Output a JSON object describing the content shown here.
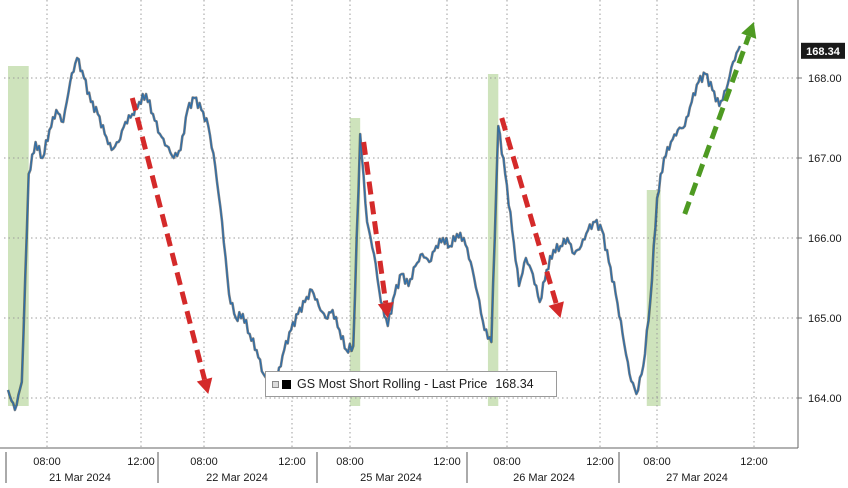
{
  "chart_data": {
    "type": "line",
    "title": "",
    "xlabel": "",
    "ylabel": "",
    "ylim": [
      163.3,
      168.9
    ],
    "y_ticks": [
      164.0,
      165.0,
      166.0,
      167.0,
      168.0
    ],
    "y_tick_labels": [
      "164.00",
      "165.00",
      "166.00",
      "167.00",
      "168.00"
    ],
    "grid": true,
    "legend": "bottom-center",
    "x_tick_labels": [
      "08:00",
      "12:00",
      "08:00",
      "12:00",
      "08:00",
      "12:00",
      "08:00",
      "12:00",
      "08:00",
      "12:00"
    ],
    "date_labels": [
      "21 Mar 2024",
      "22 Mar 2024",
      "25 Mar 2024",
      "26 Mar 2024",
      "27 Mar 2024"
    ],
    "series": [
      {
        "name": "GS Most Short Rolling",
        "color": "#2f6ea8",
        "legend_text": "GS Most Short Rolling - Last Price",
        "last_price": 168.34,
        "last_price_label": "168.34",
        "values": [
          164.1,
          163.85,
          164.2,
          166.8,
          167.2,
          167.0,
          167.35,
          167.6,
          167.45,
          167.95,
          168.25,
          168.0,
          167.7,
          167.55,
          167.3,
          167.1,
          167.2,
          167.45,
          167.55,
          167.7,
          167.8,
          167.55,
          167.3,
          167.15,
          167.0,
          167.1,
          167.6,
          167.75,
          167.6,
          167.4,
          166.9,
          166.2,
          165.3,
          165.0,
          165.05,
          164.8,
          164.6,
          164.3,
          164.15,
          164.25,
          164.6,
          164.85,
          165.05,
          165.2,
          165.35,
          165.15,
          165.0,
          165.1,
          164.85,
          164.6,
          164.65,
          167.3,
          166.2,
          165.8,
          165.2,
          164.9,
          165.3,
          165.55,
          165.4,
          165.65,
          165.8,
          165.7,
          165.9,
          166.0,
          165.9,
          166.05,
          166.0,
          165.7,
          165.3,
          164.85,
          164.7,
          167.4,
          166.8,
          166.1,
          165.4,
          165.75,
          165.55,
          165.2,
          165.6,
          165.85,
          165.9,
          166.0,
          165.8,
          165.9,
          166.1,
          166.2,
          166.1,
          165.7,
          165.3,
          164.8,
          164.3,
          164.05,
          164.4,
          165.2,
          166.5,
          167.0,
          167.2,
          167.35,
          167.4,
          167.7,
          167.95,
          168.05,
          167.85,
          167.65,
          167.85,
          168.2,
          168.4
        ]
      }
    ],
    "highlight_bands": [
      {
        "x0": 0,
        "x1": 3,
        "y_top": 168.15
      },
      {
        "x0": 49.5,
        "x1": 51,
        "y_top": 167.5
      },
      {
        "x0": 69.5,
        "x1": 71,
        "y_top": 168.05
      },
      {
        "x0": 92.5,
        "x1": 94.5,
        "y_top": 166.6
      }
    ],
    "arrows": [
      {
        "color": "#d42a2a",
        "from": [
          18,
          167.75
        ],
        "to": [
          29,
          164.05
        ]
      },
      {
        "color": "#d42a2a",
        "from": [
          51.5,
          167.2
        ],
        "to": [
          55,
          165.0
        ]
      },
      {
        "color": "#d42a2a",
        "from": [
          71.5,
          167.5
        ],
        "to": [
          80,
          165.0
        ]
      },
      {
        "color": "#4e9a22",
        "from": [
          98,
          166.3
        ],
        "to": [
          108,
          168.7
        ]
      }
    ]
  }
}
